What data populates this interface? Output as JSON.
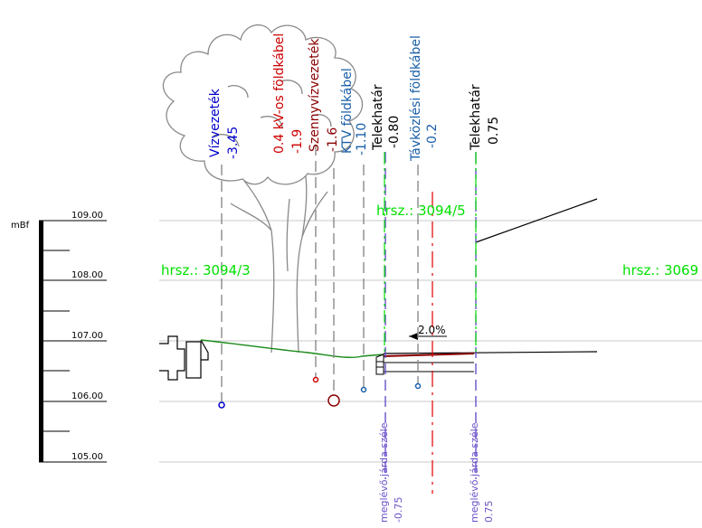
{
  "scale": {
    "unit": "mBf",
    "levels": [
      "109.00",
      "108.00",
      "107.00",
      "106.00",
      "105.00"
    ]
  },
  "parcels": [
    "hrsz.: 3094/3",
    "hrsz.: 3094/5",
    "hrsz.: 3069"
  ],
  "utilities": [
    {
      "name": "Vízvezeték",
      "offset": "-3.45",
      "color": "#0000cc"
    },
    {
      "name": "0.4 kV-os földkábel",
      "offset": "-1.9",
      "color": "#cc0000"
    },
    {
      "name": "Szennyvízvezeték",
      "offset": "-1.6",
      "color": "#8b0000"
    },
    {
      "name": "KTV földkábel",
      "offset": "-1.10",
      "color": "#1a5fa8"
    },
    {
      "name": "Telekhatár",
      "offset": "-0.80",
      "color": "#000000"
    },
    {
      "name": "Távközlési földkábel",
      "offset": "-0.2",
      "color": "#1a5fa8"
    },
    {
      "name": "Telekhatár",
      "offset": "0.75",
      "color": "#000000"
    }
  ],
  "sidewalk_edges": [
    {
      "label": "meglévő járda széle",
      "offset": "-0.75"
    },
    {
      "label": "meglévő járda széle",
      "offset": "0.75"
    }
  ],
  "slope": "2.0%",
  "colors": {
    "grid": "#c8c8c8",
    "tree": "#8a8a8a",
    "parcel": "#00e000",
    "ground": "#1a8a1a",
    "sidewalk_label": "#6a4fc8",
    "centerline": "#e00000"
  }
}
